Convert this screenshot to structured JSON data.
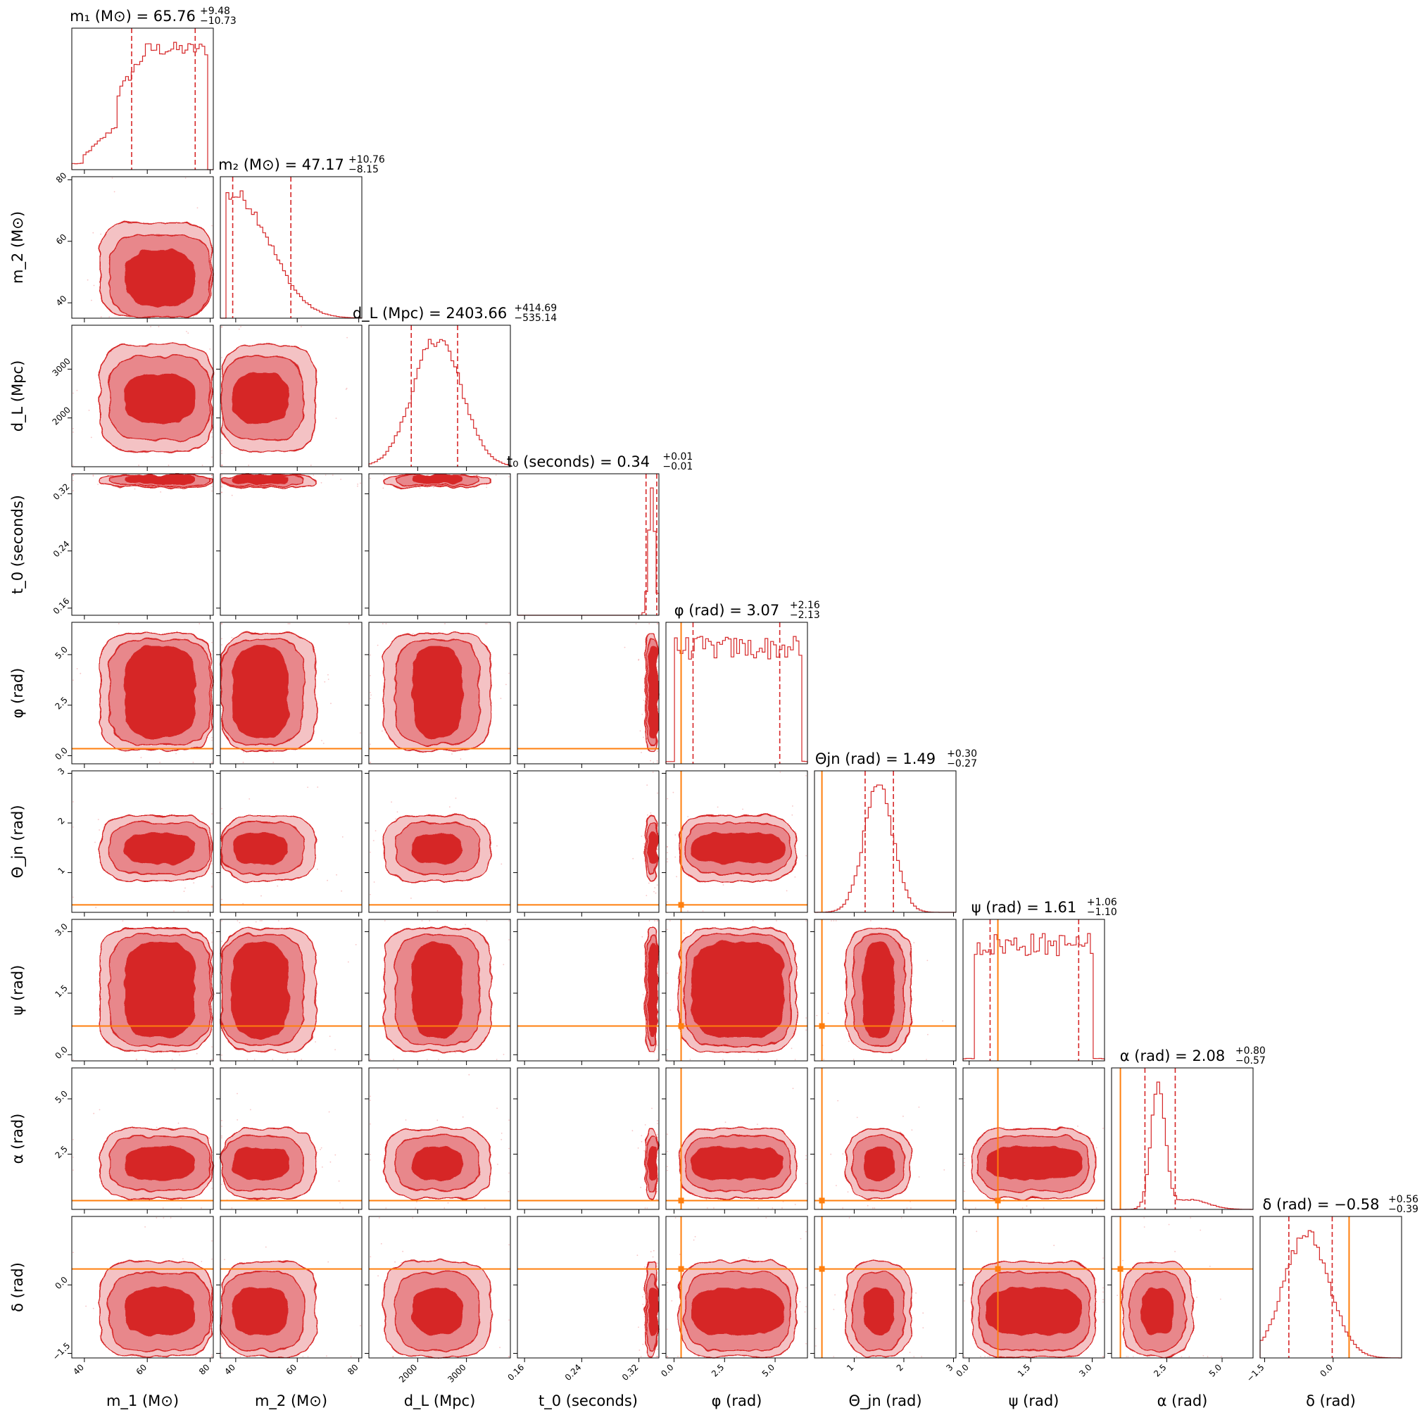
{
  "chart_data": {
    "type": "corner",
    "colors": {
      "hist": "#d62728",
      "dark": "#d62728",
      "mid": "#e8878b",
      "light": "#f4c2c4",
      "truth": "#ff7f0e",
      "axes": "#000000"
    },
    "params": [
      {
        "key": "m1",
        "label": "m_1 (M⊙)",
        "title": "m_1 (M⊙) = 65.76 +9.48 −10.73",
        "title_main": "m₁ (M⊙) = 65.76",
        "title_up": "+9.48",
        "title_dn": "−10.73",
        "range": [
          36,
          81
        ],
        "ticks": [
          40,
          60,
          80
        ],
        "tick_labels": [
          "40",
          "60",
          "80"
        ],
        "truth": null,
        "median": 65.76,
        "q_low": 55.03,
        "q_high": 75.24
      },
      {
        "key": "m2",
        "label": "m_2 (M⊙)",
        "title": "m_2 (M⊙) = 47.17 +10.76 −8.15",
        "title_main": "m₂ (M⊙) = 47.17",
        "title_up": "+10.76",
        "title_dn": "−8.15",
        "range": [
          35,
          81
        ],
        "ticks": [
          40,
          60,
          80
        ],
        "tick_labels": [
          "40",
          "60",
          "80"
        ],
        "truth": null,
        "median": 47.17,
        "q_low": 39.02,
        "q_high": 57.93
      },
      {
        "key": "dL",
        "label": "d_L (Mpc)",
        "title": "d_L (Mpc) = 2403.66 +414.69 −535.14",
        "title_main": "d_L (Mpc) = 2403.66",
        "title_up": "+414.69",
        "title_dn": "−535.14",
        "range": [
          1000,
          3900
        ],
        "ticks": [
          2000,
          3000
        ],
        "tick_labels": [
          "2000",
          "3000"
        ],
        "truth": null,
        "median": 2403.66,
        "q_low": 1868.52,
        "q_high": 2818.35
      },
      {
        "key": "t0",
        "label": "t_0 (seconds)",
        "title": "t_0 (seconds) = 0.34 +0.01 −0.01",
        "title_main": "t₀ (seconds) = 0.34",
        "title_up": "+0.01",
        "title_dn": "−0.01",
        "range": [
          0.15,
          0.348
        ],
        "ticks": [
          0.16,
          0.24,
          0.32
        ],
        "tick_labels": [
          "0.16",
          "0.24",
          "0.32"
        ],
        "truth": null,
        "median": 0.34,
        "q_low": 0.33,
        "q_high": 0.345
      },
      {
        "key": "phi",
        "label": "φ (rad)",
        "title": "φ (rad) = 3.07 +2.16 −2.13",
        "title_main": "φ (rad) = 3.07",
        "title_up": "+2.16",
        "title_dn": "−2.13",
        "range": [
          -0.4,
          6.6
        ],
        "ticks": [
          0.0,
          2.5,
          5.0
        ],
        "tick_labels": [
          "0.0",
          "2.5",
          "5.0"
        ],
        "truth": 0.35,
        "median": 3.07,
        "q_low": 0.94,
        "q_high": 5.23
      },
      {
        "key": "theta",
        "label": "Θ_jn (rad)",
        "title": "Θ_jn (rad) = 1.49 +0.30 −0.27",
        "title_main": "Θjn (rad) = 1.49",
        "title_up": "+0.30",
        "title_dn": "−0.27",
        "range": [
          0.2,
          3.05
        ],
        "ticks": [
          1,
          2,
          3
        ],
        "tick_labels": [
          "1",
          "2",
          "3"
        ],
        "truth": 0.35,
        "median": 1.49,
        "q_low": 1.22,
        "q_high": 1.79
      },
      {
        "key": "psi",
        "label": "ψ (rad)",
        "title": "ψ (rad) = 1.61 +1.06 −1.10",
        "title_main": "ψ (rad) = 1.61",
        "title_up": "+1.06",
        "title_dn": "−1.10",
        "range": [
          -0.15,
          3.3
        ],
        "ticks": [
          0.0,
          1.5,
          3.0
        ],
        "tick_labels": [
          "0.0",
          "1.5",
          "3.0"
        ],
        "truth": 0.7,
        "median": 1.61,
        "q_low": 0.51,
        "q_high": 2.67
      },
      {
        "key": "alpha",
        "label": "α (rad)",
        "title": "α (rad) = 2.08 +0.80 −0.57",
        "title_main": "α (rad) = 2.08",
        "title_up": "+0.80",
        "title_dn": "−0.57",
        "range": [
          0.0,
          6.4
        ],
        "ticks": [
          2.5,
          5.0
        ],
        "tick_labels": [
          "2.5",
          "5.0"
        ],
        "truth": 0.4,
        "median": 2.08,
        "q_low": 1.51,
        "q_high": 2.88
      },
      {
        "key": "delta",
        "label": "δ (rad)",
        "title": "δ (rad) = −0.58 +0.56 −0.39",
        "title_main": "δ (rad) = −0.58",
        "title_up": "+0.56",
        "title_dn": "−0.39",
        "range": [
          -1.6,
          1.5
        ],
        "ticks": [
          -1.5,
          0.0
        ],
        "tick_labels": [
          "−1.5",
          "0.0"
        ],
        "truth": 0.35,
        "median": -0.58,
        "q_low": -0.97,
        "q_high": -0.02
      }
    ]
  }
}
